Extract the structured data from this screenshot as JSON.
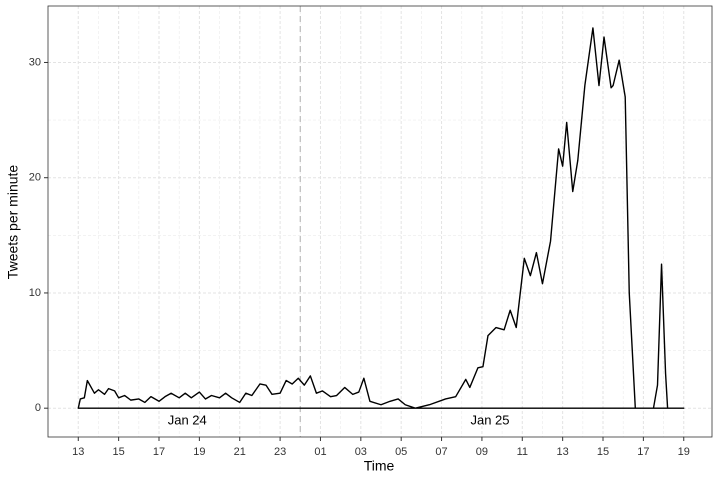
{
  "chart_data": {
    "type": "line",
    "x_label": "Time",
    "y_label": "Tweets per minute",
    "x": [
      13,
      13.1,
      13.3,
      13.45,
      13.8,
      14.0,
      14.3,
      14.5,
      14.8,
      15.0,
      15.3,
      15.6,
      16.0,
      16.3,
      16.6,
      17.0,
      17.3,
      17.6,
      18.0,
      18.3,
      18.6,
      19.0,
      19.3,
      19.6,
      20.0,
      20.3,
      20.6,
      21.0,
      21.3,
      21.6,
      22.0,
      22.3,
      22.6,
      23.0,
      23.3,
      23.6,
      23.9,
      24.2,
      24.5,
      24.8,
      25.1,
      25.5,
      25.8,
      26.2,
      26.6,
      26.9,
      27.15,
      27.45,
      28.0,
      28.45,
      28.85,
      29.2,
      29.7,
      30.4,
      31.2,
      31.7,
      32.2,
      32.4,
      32.8,
      33.05,
      33.3,
      33.7,
      34.1,
      34.4,
      34.7,
      35.1,
      35.4,
      35.7,
      36.0,
      36.4,
      36.8,
      37.0,
      37.2,
      37.5,
      37.75,
      38.1,
      38.5,
      38.8,
      39.05,
      39.4,
      39.5,
      39.8,
      40.1,
      40.3,
      40.6,
      41.5,
      41.7,
      41.9,
      42.1,
      42.2,
      43.0
    ],
    "values": [
      0,
      0.8,
      0.9,
      2.4,
      1.3,
      1.6,
      1.2,
      1.7,
      1.5,
      0.9,
      1.1,
      0.7,
      0.8,
      0.5,
      1.0,
      0.6,
      1.0,
      1.3,
      0.9,
      1.3,
      0.9,
      1.4,
      0.8,
      1.1,
      0.9,
      1.3,
      0.9,
      0.5,
      1.3,
      1.1,
      2.1,
      2.0,
      1.2,
      1.3,
      2.4,
      2.1,
      2.6,
      2.0,
      2.8,
      1.3,
      1.5,
      1.0,
      1.1,
      1.8,
      1.2,
      1.4,
      2.6,
      0.6,
      0.3,
      0.6,
      0.8,
      0.3,
      0,
      0.3,
      0.8,
      1.0,
      2.5,
      1.8,
      3.5,
      3.6,
      6.3,
      7.0,
      6.8,
      8.5,
      7.0,
      13.0,
      11.5,
      13.5,
      10.8,
      14.5,
      22.5,
      21.0,
      24.8,
      18.8,
      21.5,
      28.0,
      33.0,
      28.0,
      32.2,
      27.8,
      28.0,
      30.2,
      27.0,
      10.0,
      0,
      0,
      2.0,
      12.5,
      3.0,
      0,
      0
    ],
    "color": "#000000",
    "xlim": [
      11.5,
      44.4
    ],
    "ylim": [
      -2.5,
      34.9
    ],
    "xticks": [
      13,
      15,
      17,
      19,
      21,
      23,
      {
        "value": 25,
        "label": "01"
      },
      {
        "value": 27,
        "label": "03"
      },
      {
        "value": 29,
        "label": "05"
      },
      {
        "value": 31,
        "label": "07"
      },
      {
        "value": 33,
        "label": "09"
      },
      {
        "value": 35,
        "label": "11"
      },
      {
        "value": 37,
        "label": "13"
      },
      {
        "value": 39,
        "label": "15"
      },
      {
        "value": 41,
        "label": "17"
      },
      {
        "value": 43,
        "label": "19"
      }
    ],
    "yticks": [
      0,
      10,
      20,
      30
    ],
    "grid": true,
    "vline": 24,
    "annotations": [
      {
        "text": "Jan 24",
        "x": 18.4,
        "y": -1.1
      },
      {
        "text": "Jan 25",
        "x": 33.4,
        "y": -1.1
      }
    ]
  }
}
